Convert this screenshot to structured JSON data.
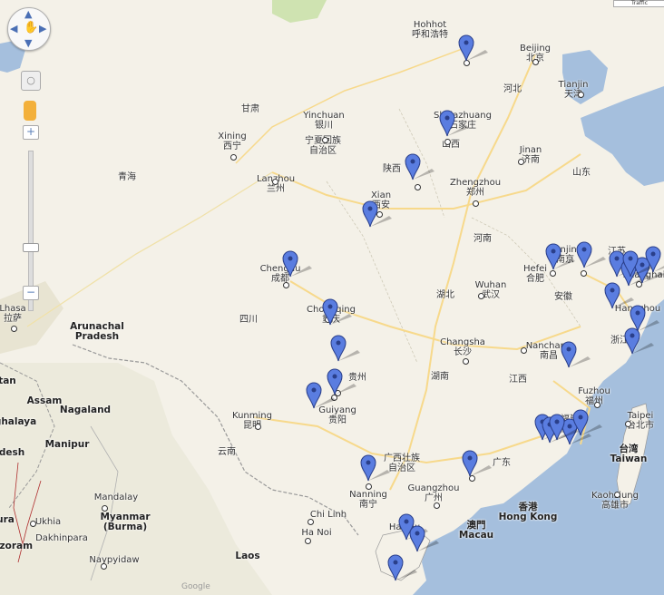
{
  "map": {
    "colors": {
      "land": "#f4f1e8",
      "water": "#a5bfdd",
      "green": "#cfe3b1",
      "road": "#f7d98b",
      "pin": "#5a7de0"
    },
    "corner_label": "Traffic",
    "logo": "Google",
    "labels": [
      {
        "id": "hohhot",
        "lines": [
          "Hohhot",
          "呼和浩特"
        ]
      },
      {
        "id": "beijing",
        "lines": [
          "Beijing",
          "北京"
        ]
      },
      {
        "id": "tianjin",
        "lines": [
          "Tianjin",
          "天津"
        ]
      },
      {
        "id": "hebei",
        "lines": [
          "河北"
        ]
      },
      {
        "id": "gansu",
        "lines": [
          "甘肃"
        ]
      },
      {
        "id": "yinchuan",
        "lines": [
          "Yinchuan",
          "银川"
        ]
      },
      {
        "id": "ningxia",
        "lines": [
          "宁夏回族",
          "自治区"
        ]
      },
      {
        "id": "shijiazhuang",
        "lines": [
          "Shijiazhuang",
          "石家庄"
        ]
      },
      {
        "id": "shanxi",
        "lines": [
          "山西"
        ]
      },
      {
        "id": "xining",
        "lines": [
          "Xining",
          "西宁"
        ]
      },
      {
        "id": "jinan",
        "lines": [
          "Jinan",
          "济南"
        ]
      },
      {
        "id": "shandong",
        "lines": [
          "山东"
        ]
      },
      {
        "id": "qinghai",
        "lines": [
          "青海"
        ]
      },
      {
        "id": "shaanxi",
        "lines": [
          "陕西"
        ]
      },
      {
        "id": "lanzhou",
        "lines": [
          "Lanzhou",
          "兰州"
        ]
      },
      {
        "id": "zhengzhou",
        "lines": [
          "Zhengzhou",
          "郑州"
        ]
      },
      {
        "id": "xian",
        "lines": [
          "Xian",
          "西安"
        ]
      },
      {
        "id": "henan",
        "lines": [
          "河南"
        ]
      },
      {
        "id": "jiangsu",
        "lines": [
          "江苏"
        ]
      },
      {
        "id": "nanjing",
        "lines": [
          "Nanjing",
          "南京"
        ]
      },
      {
        "id": "shanghai",
        "lines": [
          "Shanghai"
        ]
      },
      {
        "id": "hefei",
        "lines": [
          "Hefei",
          "合肥"
        ]
      },
      {
        "id": "anhui",
        "lines": [
          "安徽"
        ]
      },
      {
        "id": "chengdu",
        "lines": [
          "Chengdu",
          "成都"
        ]
      },
      {
        "id": "hubei",
        "lines": [
          "湖北"
        ]
      },
      {
        "id": "wuhan",
        "lines": [
          "Wuhan",
          "武汉"
        ]
      },
      {
        "id": "lhasa",
        "lines": [
          "Lhasa",
          "拉萨"
        ]
      },
      {
        "id": "sichuan",
        "lines": [
          "四川"
        ]
      },
      {
        "id": "chongqing",
        "lines": [
          "Chongqing",
          "重庆"
        ]
      },
      {
        "id": "hangzhou",
        "lines": [
          "Hangzhou"
        ]
      },
      {
        "id": "zhejiang",
        "lines": [
          "浙江"
        ]
      },
      {
        "id": "changsha",
        "lines": [
          "Changsha",
          "长沙"
        ]
      },
      {
        "id": "nanchang",
        "lines": [
          "Nanchang",
          "南昌"
        ]
      },
      {
        "id": "arunachal",
        "lines": [
          "Arunachal",
          "Pradesh"
        ]
      },
      {
        "id": "hunan",
        "lines": [
          "湖南"
        ]
      },
      {
        "id": "jiangxi",
        "lines": [
          "江西"
        ]
      },
      {
        "id": "guizhou",
        "lines": [
          "贵州"
        ]
      },
      {
        "id": "tan",
        "lines": [
          "tan"
        ]
      },
      {
        "id": "assam",
        "lines": [
          "Assam"
        ]
      },
      {
        "id": "nagaland",
        "lines": [
          "Nagaland"
        ]
      },
      {
        "id": "guiyang",
        "lines": [
          "Guiyang",
          "贵阳"
        ]
      },
      {
        "id": "fuzhou",
        "lines": [
          "Fuzhou",
          "福州"
        ]
      },
      {
        "id": "fujian",
        "lines": [
          "福建"
        ]
      },
      {
        "id": "taipei",
        "lines": [
          "Taipei",
          "台北市"
        ]
      },
      {
        "id": "ghalaya",
        "lines": [
          "ghalaya"
        ]
      },
      {
        "id": "kunming",
        "lines": [
          "Kunming",
          "昆明"
        ]
      },
      {
        "id": "manipur",
        "lines": [
          "Manipur"
        ]
      },
      {
        "id": "desh",
        "lines": [
          "desh"
        ]
      },
      {
        "id": "yunnan",
        "lines": [
          "云南"
        ]
      },
      {
        "id": "taiwan",
        "lines": [
          "台湾",
          "Taiwan"
        ]
      },
      {
        "id": "guangxi",
        "lines": [
          "广西壮族",
          "自治区"
        ]
      },
      {
        "id": "guangdong",
        "lines": [
          "广东"
        ]
      },
      {
        "id": "kaohsiung",
        "lines": [
          "Kaohsiung",
          "高雄市"
        ]
      },
      {
        "id": "nanning",
        "lines": [
          "Nanning",
          "南宁"
        ]
      },
      {
        "id": "guangzhou",
        "lines": [
          "Guangzhou",
          "广州"
        ]
      },
      {
        "id": "mandalay",
        "lines": [
          "Mandalay"
        ]
      },
      {
        "id": "myanmar",
        "lines": [
          "Myanmar",
          "(Burma)"
        ]
      },
      {
        "id": "hongkong",
        "lines": [
          "香港",
          "Hong Kong"
        ]
      },
      {
        "id": "chilinh",
        "lines": [
          "Chi Linh"
        ]
      },
      {
        "id": "hanoi",
        "lines": [
          "Ha Noi"
        ]
      },
      {
        "id": "macau",
        "lines": [
          "澳門",
          "Macau"
        ]
      },
      {
        "id": "haikou",
        "lines": [
          "Haikou"
        ]
      },
      {
        "id": "tura",
        "lines": [
          "ura"
        ]
      },
      {
        "id": "ukhia",
        "lines": [
          "Ukhia"
        ]
      },
      {
        "id": "dakhinpara",
        "lines": [
          "Dakhinpara"
        ]
      },
      {
        "id": "mizoram",
        "lines": [
          "izoram"
        ]
      },
      {
        "id": "laos",
        "lines": [
          "Laos"
        ]
      },
      {
        "id": "naypyidaw",
        "lines": [
          "Naypyidaw"
        ]
      }
    ],
    "marker_count": 30
  }
}
